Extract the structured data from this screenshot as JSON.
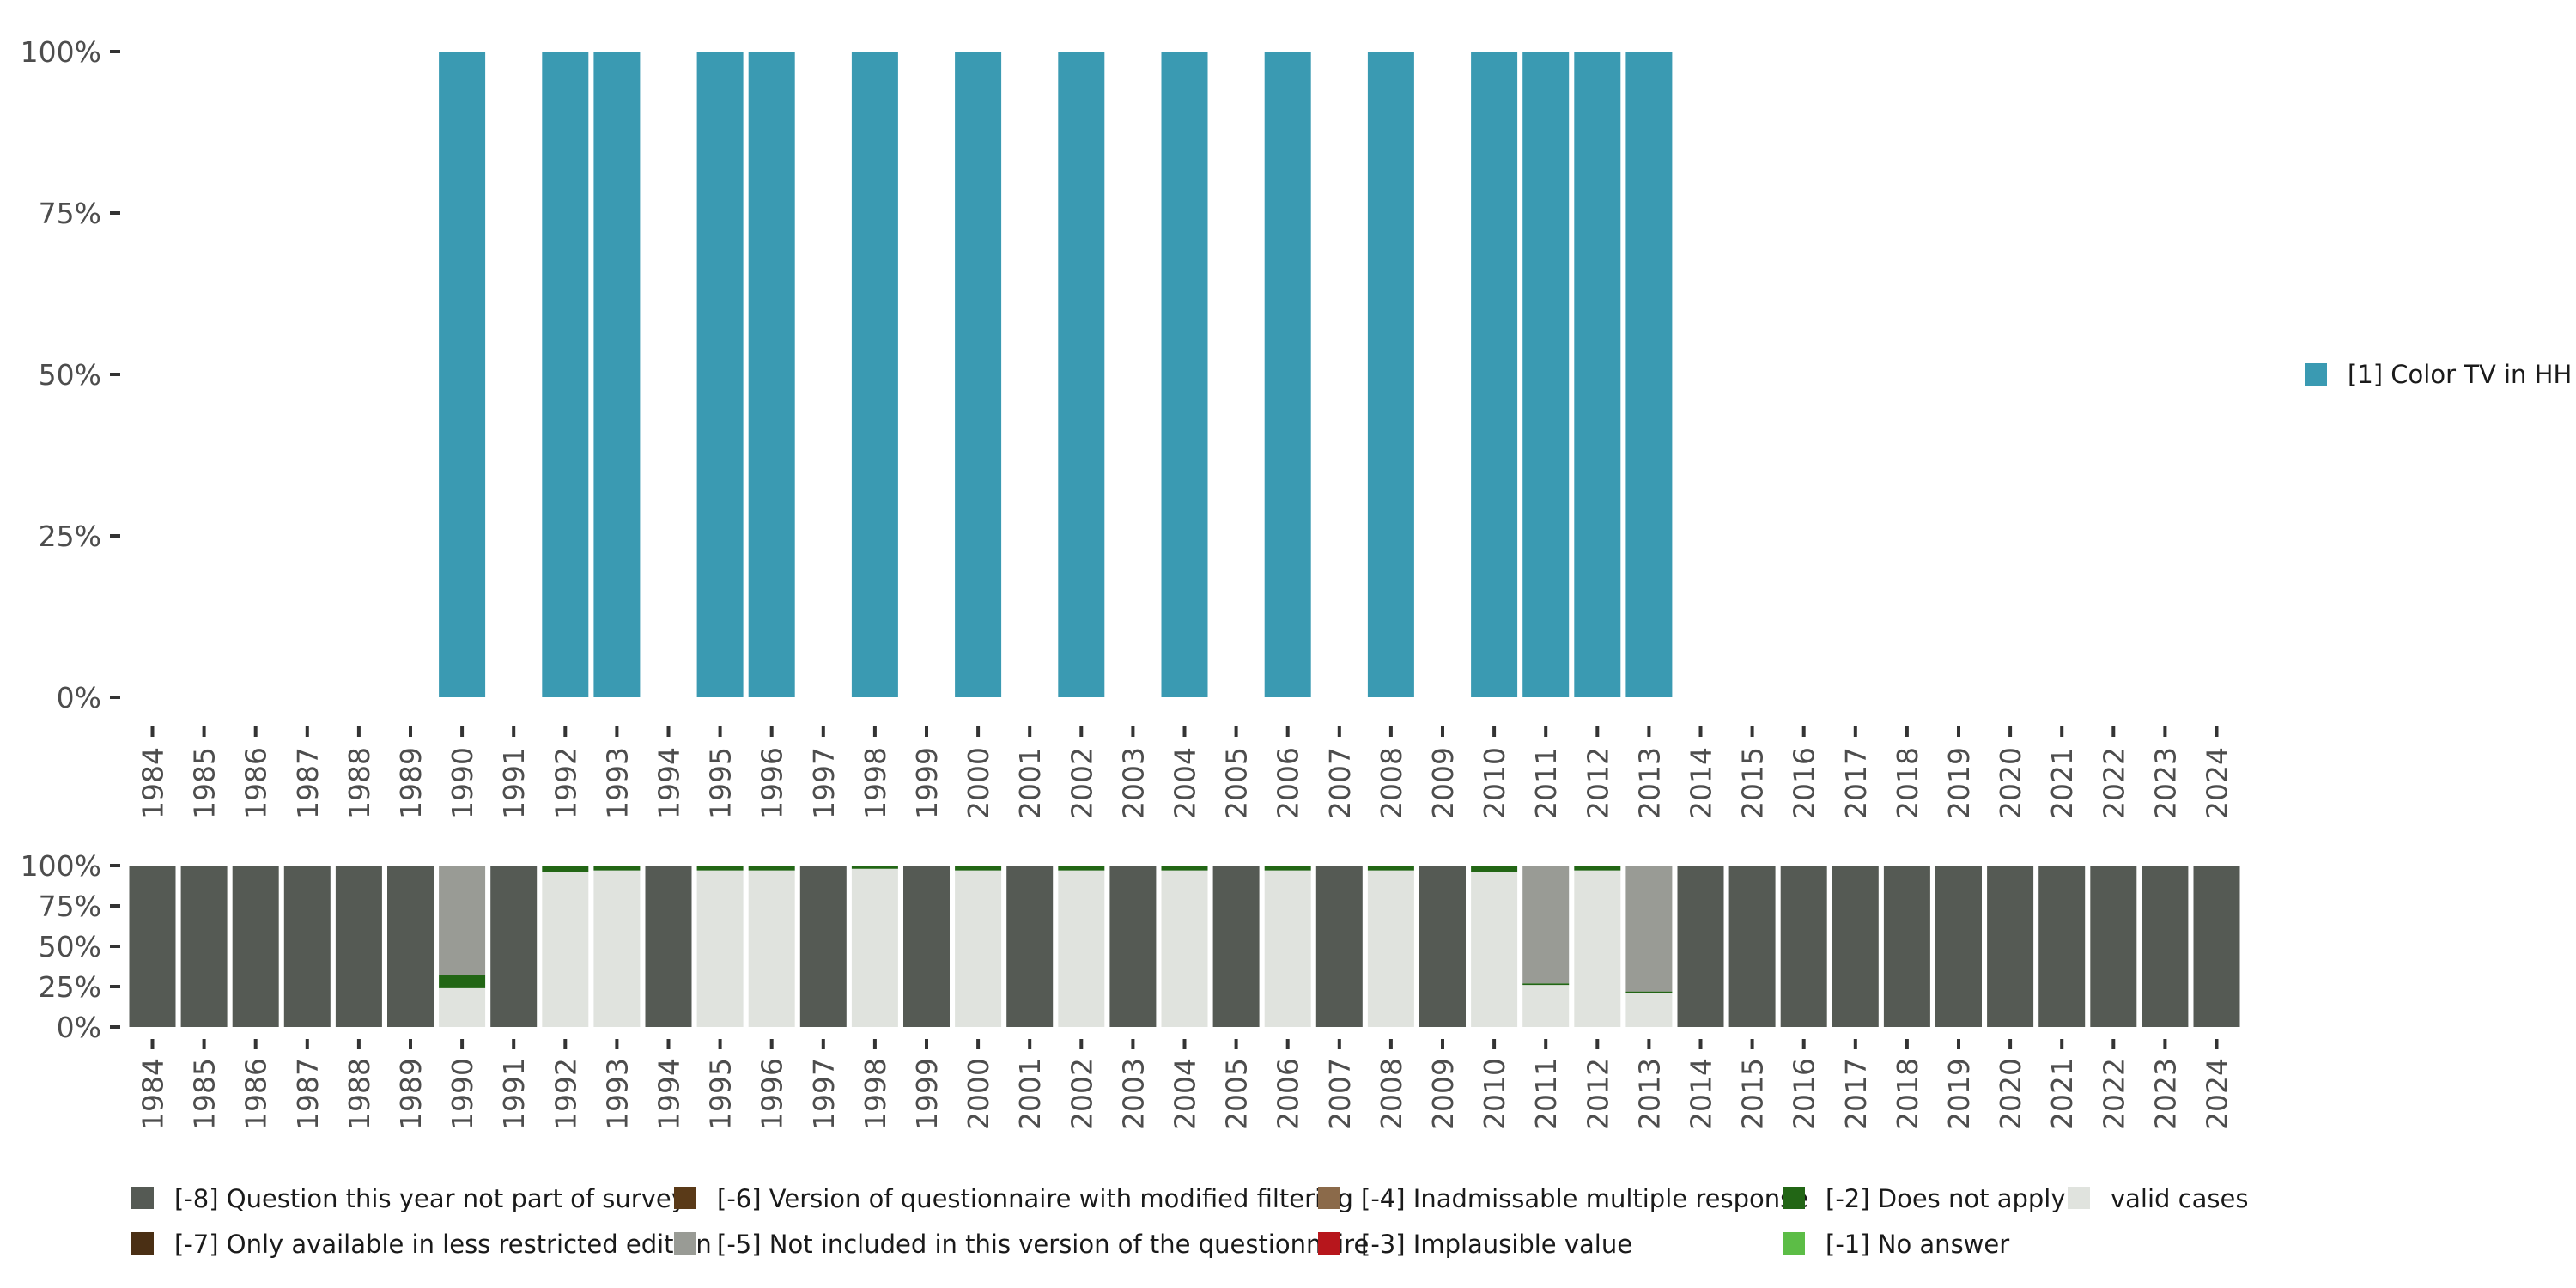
{
  "chart_data": [
    {
      "type": "bar",
      "title": "",
      "xlabel": "",
      "ylabel": "",
      "ylim": [
        0,
        100
      ],
      "y_ticks": [
        "0%",
        "25%",
        "50%",
        "75%",
        "100%"
      ],
      "categories": [
        "1984",
        "1985",
        "1986",
        "1987",
        "1988",
        "1989",
        "1990",
        "1991",
        "1992",
        "1993",
        "1994",
        "1995",
        "1996",
        "1997",
        "1998",
        "1999",
        "2000",
        "2001",
        "2002",
        "2003",
        "2004",
        "2005",
        "2006",
        "2007",
        "2008",
        "2009",
        "2010",
        "2011",
        "2012",
        "2013",
        "2014",
        "2015",
        "2016",
        "2017",
        "2018",
        "2019",
        "2020",
        "2021",
        "2022",
        "2023",
        "2024"
      ],
      "series": [
        {
          "name": "[1] Color TV in HH",
          "color": "#3a9ab2",
          "values": [
            null,
            null,
            null,
            null,
            null,
            null,
            100,
            null,
            100,
            100,
            null,
            100,
            100,
            null,
            100,
            null,
            100,
            null,
            100,
            null,
            100,
            null,
            100,
            null,
            100,
            null,
            100,
            100,
            100,
            100,
            null,
            null,
            null,
            null,
            null,
            null,
            null,
            null,
            null,
            null,
            null
          ]
        }
      ],
      "legend": {
        "position": "right"
      }
    },
    {
      "type": "bar",
      "stacked": true,
      "title": "",
      "xlabel": "",
      "ylabel": "",
      "ylim": [
        0,
        100
      ],
      "y_ticks": [
        "0%",
        "25%",
        "50%",
        "75%",
        "100%"
      ],
      "categories": [
        "1984",
        "1985",
        "1986",
        "1987",
        "1988",
        "1989",
        "1990",
        "1991",
        "1992",
        "1993",
        "1994",
        "1995",
        "1996",
        "1997",
        "1998",
        "1999",
        "2000",
        "2001",
        "2002",
        "2003",
        "2004",
        "2005",
        "2006",
        "2007",
        "2008",
        "2009",
        "2010",
        "2011",
        "2012",
        "2013",
        "2014",
        "2015",
        "2016",
        "2017",
        "2018",
        "2019",
        "2020",
        "2021",
        "2022",
        "2023",
        "2024"
      ],
      "series": [
        {
          "name": "valid cases",
          "color": "#e0e3de",
          "values": [
            0,
            0,
            0,
            0,
            0,
            0,
            24,
            0,
            96,
            97,
            0,
            97,
            97,
            0,
            98,
            0,
            97,
            0,
            97,
            0,
            97,
            0,
            97,
            0,
            97,
            0,
            96,
            26,
            97,
            21,
            0,
            0,
            0,
            0,
            0,
            0,
            0,
            0,
            0,
            0,
            0
          ]
        },
        {
          "name": "[-1] No answer",
          "color": "#5cbd46",
          "values": [
            0,
            0,
            0,
            0,
            0,
            0,
            0,
            0,
            0,
            0,
            0,
            0,
            0,
            0,
            0,
            0,
            0,
            0,
            0,
            0,
            0,
            0,
            0,
            0,
            0,
            0,
            0,
            0,
            0,
            0,
            0,
            0,
            0,
            0,
            0,
            0,
            0,
            0,
            0,
            0,
            0
          ]
        },
        {
          "name": "[-2] Does not apply",
          "color": "#226615",
          "values": [
            0,
            0,
            0,
            0,
            0,
            0,
            8,
            0,
            4,
            3,
            0,
            3,
            3,
            0,
            2,
            0,
            3,
            0,
            3,
            0,
            3,
            0,
            3,
            0,
            3,
            0,
            4,
            1,
            3,
            1,
            0,
            0,
            0,
            0,
            0,
            0,
            0,
            0,
            0,
            0,
            0
          ]
        },
        {
          "name": "[-3] Implausible value",
          "color": "#b7161c",
          "values": [
            0,
            0,
            0,
            0,
            0,
            0,
            0,
            0,
            0,
            0,
            0,
            0,
            0,
            0,
            0,
            0,
            0,
            0,
            0,
            0,
            0,
            0,
            0,
            0,
            0,
            0,
            0,
            0,
            0,
            0,
            0,
            0,
            0,
            0,
            0,
            0,
            0,
            0,
            0,
            0,
            0
          ]
        },
        {
          "name": "[-4] Inadmissable multiple response",
          "color": "#8b6a4a",
          "values": [
            0,
            0,
            0,
            0,
            0,
            0,
            0,
            0,
            0,
            0,
            0,
            0,
            0,
            0,
            0,
            0,
            0,
            0,
            0,
            0,
            0,
            0,
            0,
            0,
            0,
            0,
            0,
            0,
            0,
            0,
            0,
            0,
            0,
            0,
            0,
            0,
            0,
            0,
            0,
            0,
            0
          ]
        },
        {
          "name": "[-5] Not included in this version of the questionnaire",
          "color": "#999b95",
          "values": [
            0,
            0,
            0,
            0,
            0,
            0,
            68,
            0,
            0,
            0,
            0,
            0,
            0,
            0,
            0,
            0,
            0,
            0,
            0,
            0,
            0,
            0,
            0,
            0,
            0,
            0,
            0,
            73,
            0,
            78,
            0,
            0,
            0,
            0,
            0,
            0,
            0,
            0,
            0,
            0,
            0
          ]
        },
        {
          "name": "[-6] Version of questionnaire with modified filtering",
          "color": "#5a3a18",
          "values": [
            0,
            0,
            0,
            0,
            0,
            0,
            0,
            0,
            0,
            0,
            0,
            0,
            0,
            0,
            0,
            0,
            0,
            0,
            0,
            0,
            0,
            0,
            0,
            0,
            0,
            0,
            0,
            0,
            0,
            0,
            0,
            0,
            0,
            0,
            0,
            0,
            0,
            0,
            0,
            0,
            0
          ]
        },
        {
          "name": "[-7] Only available in less restricted edition",
          "color": "#4a2f14",
          "values": [
            0,
            0,
            0,
            0,
            0,
            0,
            0,
            0,
            0,
            0,
            0,
            0,
            0,
            0,
            0,
            0,
            0,
            0,
            0,
            0,
            0,
            0,
            0,
            0,
            0,
            0,
            0,
            0,
            0,
            0,
            0,
            0,
            0,
            0,
            0,
            0,
            0,
            0,
            0,
            0,
            0
          ]
        },
        {
          "name": "[-8] Question this year not part of survey",
          "color": "#555a54",
          "values": [
            100,
            100,
            100,
            100,
            100,
            100,
            0,
            100,
            0,
            0,
            100,
            0,
            0,
            100,
            0,
            100,
            0,
            100,
            0,
            100,
            0,
            100,
            0,
            100,
            0,
            100,
            0,
            0,
            0,
            0,
            100,
            100,
            100,
            100,
            100,
            100,
            100,
            100,
            100,
            100,
            100
          ]
        }
      ],
      "legend": {
        "position": "bottom",
        "rows": [
          [
            "[-8] Question this year not part of survey",
            "[-6] Version of questionnaire with modified filtering",
            "[-4] Inadmissable multiple response",
            "[-2] Does not apply",
            "valid cases"
          ],
          [
            "[-7] Only available in less restricted edition",
            "[-5] Not included in this version of the questionnaire",
            "[-3] Implausible value",
            "[-1] No answer"
          ]
        ]
      }
    }
  ]
}
